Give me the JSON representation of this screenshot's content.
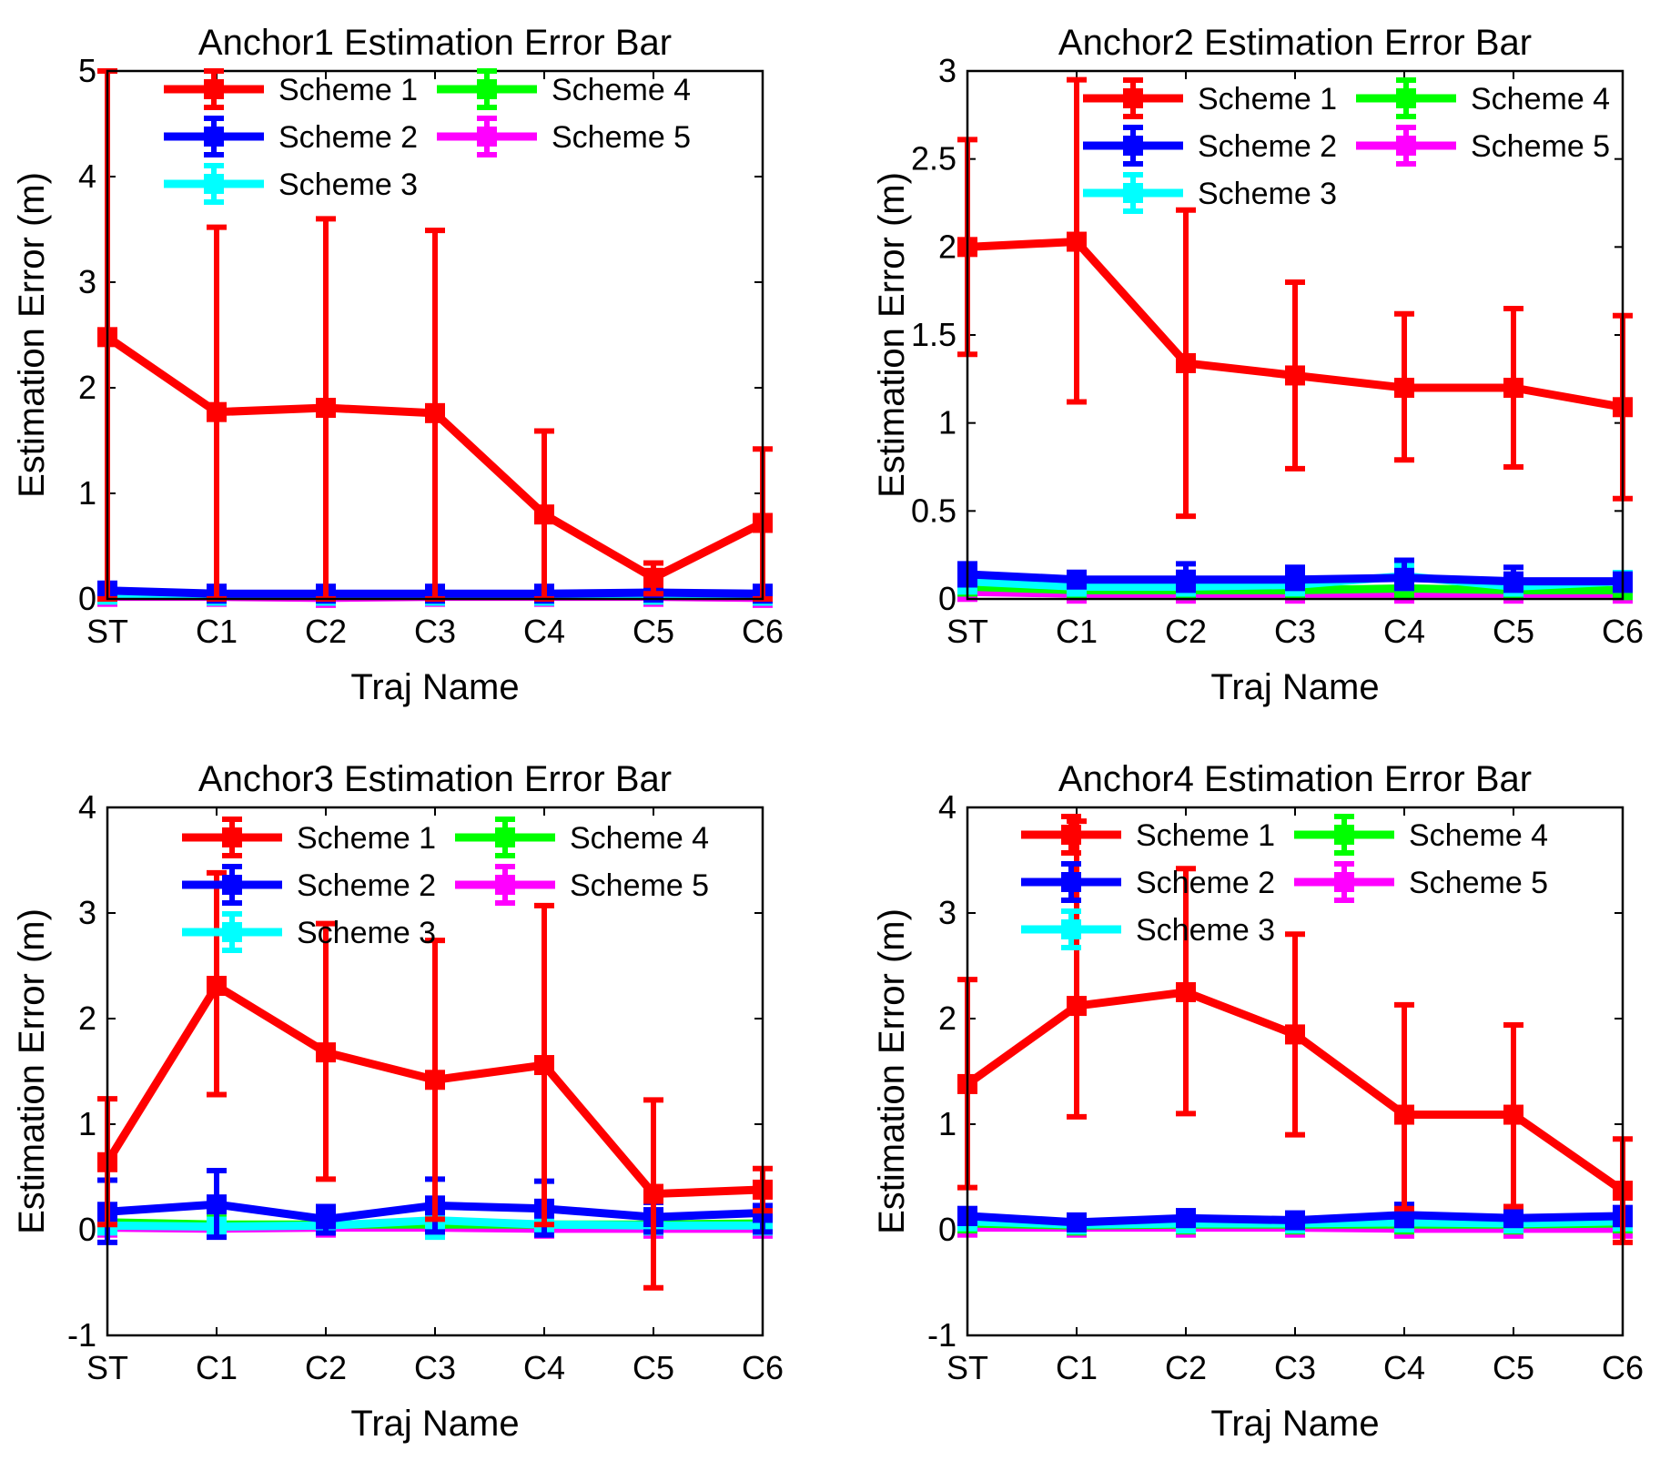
{
  "figure": {
    "background": "#ffffff"
  },
  "colors": {
    "s1": "#ff0000",
    "s2": "#0000ff",
    "s3": "#00ffff",
    "s4": "#00ff00",
    "s5": "#ff00ff"
  },
  "chart_data": [
    {
      "type": "line",
      "title": "Anchor1 Estimation Error Bar",
      "xlabel": "Traj Name",
      "ylabel": "Estimation Error (m)",
      "categories": [
        "ST",
        "C1",
        "C2",
        "C3",
        "C4",
        "C5",
        "C6"
      ],
      "ylim": [
        0,
        5
      ],
      "yticks": [
        0,
        1,
        2,
        3,
        4,
        5
      ],
      "ytick_labels": [
        "0",
        "1",
        "2",
        "3",
        "4",
        "5"
      ],
      "legend": {
        "layout": "two-column-top-left"
      },
      "series": [
        {
          "name": "Scheme 1",
          "color": "#ff0000",
          "values": [
            2.48,
            1.77,
            1.81,
            1.76,
            0.8,
            0.2,
            0.72
          ],
          "err_low": [
            0.0,
            0.0,
            0.0,
            0.0,
            0.0,
            0.05,
            0.0
          ],
          "err_high": [
            5.0,
            3.52,
            3.6,
            3.49,
            1.59,
            0.34,
            1.42
          ]
        },
        {
          "name": "Scheme 2",
          "color": "#0000ff",
          "values": [
            0.08,
            0.05,
            0.05,
            0.05,
            0.05,
            0.06,
            0.05
          ],
          "err_low": [
            0.05,
            0.02,
            0.02,
            0.02,
            0.02,
            0.03,
            0.02
          ],
          "err_high": [
            0.11,
            0.08,
            0.08,
            0.08,
            0.08,
            0.09,
            0.08
          ]
        },
        {
          "name": "Scheme 3",
          "color": "#00ffff",
          "values": [
            0.04,
            0.03,
            0.03,
            0.03,
            0.03,
            0.04,
            0.03
          ],
          "err_low": [
            0.0,
            0.0,
            0.0,
            0.0,
            0.0,
            0.0,
            0.0
          ],
          "err_high": [
            0.08,
            0.06,
            0.06,
            0.06,
            0.06,
            0.07,
            0.06
          ]
        },
        {
          "name": "Scheme 4",
          "color": "#00ff00",
          "values": [
            0.06,
            0.04,
            0.04,
            0.04,
            0.04,
            0.04,
            0.04
          ],
          "err_low": [
            0.02,
            0.01,
            0.01,
            0.01,
            0.01,
            0.01,
            0.01
          ],
          "err_high": [
            0.1,
            0.07,
            0.07,
            0.07,
            0.07,
            0.07,
            0.07
          ]
        },
        {
          "name": "Scheme 5",
          "color": "#ff00ff",
          "values": [
            0.02,
            0.02,
            0.01,
            0.02,
            0.02,
            0.02,
            0.01
          ],
          "err_low": [
            0.0,
            0.0,
            0.0,
            0.0,
            0.0,
            0.0,
            0.0
          ],
          "err_high": [
            0.04,
            0.04,
            0.03,
            0.04,
            0.04,
            0.04,
            0.03
          ]
        }
      ]
    },
    {
      "type": "line",
      "title": "Anchor2 Estimation Error Bar",
      "xlabel": "Traj Name",
      "ylabel": "Estimation Error (m)",
      "categories": [
        "ST",
        "C1",
        "C2",
        "C3",
        "C4",
        "C5",
        "C6"
      ],
      "ylim": [
        0,
        3
      ],
      "yticks": [
        0,
        0.5,
        1,
        1.5,
        2,
        2.5,
        3
      ],
      "ytick_labels": [
        "0",
        "0.5",
        "1",
        "1.5",
        "2",
        "2.5",
        "3"
      ],
      "legend": {
        "layout": "two-column-top-right"
      },
      "series": [
        {
          "name": "Scheme 1",
          "color": "#ff0000",
          "values": [
            2.0,
            2.03,
            1.34,
            1.27,
            1.2,
            1.2,
            1.09
          ],
          "err_low": [
            1.39,
            1.12,
            0.47,
            0.74,
            0.79,
            0.75,
            0.57
          ],
          "err_high": [
            2.61,
            2.95,
            2.21,
            1.8,
            1.62,
            1.65,
            1.61
          ]
        },
        {
          "name": "Scheme 2",
          "color": "#0000ff",
          "values": [
            0.14,
            0.11,
            0.11,
            0.11,
            0.12,
            0.1,
            0.1
          ],
          "err_low": [
            0.08,
            0.07,
            0.05,
            0.06,
            0.06,
            0.05,
            0.05
          ],
          "err_high": [
            0.2,
            0.14,
            0.2,
            0.18,
            0.22,
            0.18,
            0.14
          ]
        },
        {
          "name": "Scheme 3",
          "color": "#00ffff",
          "values": [
            0.1,
            0.07,
            0.07,
            0.08,
            0.13,
            0.07,
            0.1
          ],
          "err_low": [
            0.04,
            0.03,
            0.03,
            0.03,
            0.06,
            0.03,
            0.05
          ],
          "err_high": [
            0.16,
            0.12,
            0.12,
            0.13,
            0.2,
            0.12,
            0.15
          ]
        },
        {
          "name": "Scheme 4",
          "color": "#00ff00",
          "values": [
            0.07,
            0.05,
            0.05,
            0.05,
            0.06,
            0.05,
            0.05
          ],
          "err_low": [
            0.03,
            0.02,
            0.02,
            0.02,
            0.02,
            0.02,
            0.02
          ],
          "err_high": [
            0.11,
            0.08,
            0.08,
            0.08,
            0.1,
            0.08,
            0.08
          ]
        },
        {
          "name": "Scheme 5",
          "color": "#ff00ff",
          "values": [
            0.04,
            0.03,
            0.03,
            0.03,
            0.03,
            0.03,
            0.03
          ],
          "err_low": [
            0.0,
            0.0,
            0.0,
            0.0,
            0.0,
            0.0,
            0.0
          ],
          "err_high": [
            0.07,
            0.05,
            0.05,
            0.05,
            0.05,
            0.05,
            0.05
          ]
        }
      ]
    },
    {
      "type": "line",
      "title": "Anchor3 Estimation Error Bar",
      "xlabel": "Traj Name",
      "ylabel": "Estimation Error (m)",
      "categories": [
        "ST",
        "C1",
        "C2",
        "C3",
        "C4",
        "C5",
        "C6"
      ],
      "ylim": [
        -1,
        4
      ],
      "yticks": [
        -1,
        0,
        1,
        2,
        3,
        4
      ],
      "ytick_labels": [
        "-1",
        "0",
        "1",
        "2",
        "3",
        "4"
      ],
      "legend": {
        "layout": "two-column-top-left"
      },
      "series": [
        {
          "name": "Scheme 1",
          "color": "#ff0000",
          "values": [
            0.64,
            2.31,
            1.68,
            1.42,
            1.56,
            0.34,
            0.38
          ],
          "err_low": [
            0.05,
            1.28,
            0.48,
            0.1,
            0.05,
            -0.55,
            0.18
          ],
          "err_high": [
            1.24,
            3.38,
            2.9,
            2.74,
            3.07,
            1.23,
            0.58
          ]
        },
        {
          "name": "Scheme 2",
          "color": "#0000ff",
          "values": [
            0.17,
            0.24,
            0.1,
            0.23,
            0.2,
            0.12,
            0.16
          ],
          "err_low": [
            -0.12,
            -0.07,
            -0.03,
            -0.02,
            -0.05,
            -0.02,
            -0.02
          ],
          "err_high": [
            0.47,
            0.56,
            0.22,
            0.48,
            0.46,
            0.26,
            0.35
          ]
        },
        {
          "name": "Scheme 3",
          "color": "#00ffff",
          "values": [
            0.04,
            0.03,
            0.04,
            0.09,
            0.05,
            0.04,
            0.04
          ],
          "err_low": [
            -0.02,
            -0.02,
            0.0,
            -0.07,
            0.0,
            0.0,
            0.0
          ],
          "err_high": [
            0.1,
            0.09,
            0.1,
            0.26,
            0.1,
            0.08,
            0.08
          ]
        },
        {
          "name": "Scheme 4",
          "color": "#00ff00",
          "values": [
            0.07,
            0.05,
            0.05,
            0.05,
            0.05,
            0.05,
            0.06
          ],
          "err_low": [
            0.02,
            0.01,
            0.01,
            0.01,
            0.01,
            0.01,
            0.02
          ],
          "err_high": [
            0.12,
            0.09,
            0.09,
            0.09,
            0.09,
            0.09,
            0.1
          ]
        },
        {
          "name": "Scheme 5",
          "color": "#ff00ff",
          "values": [
            0.02,
            0.01,
            0.02,
            0.02,
            0.01,
            0.01,
            0.01
          ],
          "err_low": [
            -0.02,
            -0.02,
            -0.02,
            -0.02,
            -0.02,
            -0.02,
            -0.02
          ],
          "err_high": [
            0.06,
            0.04,
            0.05,
            0.05,
            0.04,
            0.04,
            0.04
          ]
        }
      ]
    },
    {
      "type": "line",
      "title": "Anchor4 Estimation Error Bar",
      "xlabel": "Traj Name",
      "ylabel": "Estimation Error (m)",
      "categories": [
        "ST",
        "C1",
        "C2",
        "C3",
        "C4",
        "C5",
        "C6"
      ],
      "ylim": [
        -1,
        4
      ],
      "yticks": [
        -1,
        0,
        1,
        2,
        3,
        4
      ],
      "ytick_labels": [
        "-1",
        "0",
        "1",
        "2",
        "3",
        "4"
      ],
      "legend": {
        "layout": "two-column-top-left"
      },
      "series": [
        {
          "name": "Scheme 1",
          "color": "#ff0000",
          "values": [
            1.38,
            2.12,
            2.25,
            1.85,
            1.09,
            1.09,
            0.37
          ],
          "err_low": [
            0.4,
            1.07,
            1.1,
            0.9,
            0.2,
            0.22,
            -0.12
          ],
          "err_high": [
            2.37,
            3.87,
            3.42,
            2.8,
            2.13,
            1.94,
            0.86
          ]
        },
        {
          "name": "Scheme 2",
          "color": "#0000ff",
          "values": [
            0.13,
            0.07,
            0.11,
            0.09,
            0.14,
            0.11,
            0.13
          ],
          "err_low": [
            0.06,
            0.02,
            0.05,
            0.04,
            0.04,
            0.05,
            0.05
          ],
          "err_high": [
            0.2,
            0.12,
            0.18,
            0.14,
            0.24,
            0.17,
            0.21
          ]
        },
        {
          "name": "Scheme 3",
          "color": "#00ffff",
          "values": [
            0.08,
            0.05,
            0.06,
            0.06,
            0.07,
            0.06,
            0.08
          ],
          "err_low": [
            0.02,
            0.01,
            0.02,
            0.02,
            0.02,
            0.02,
            0.02
          ],
          "err_high": [
            0.14,
            0.09,
            0.1,
            0.1,
            0.12,
            0.1,
            0.14
          ]
        },
        {
          "name": "Scheme 4",
          "color": "#00ff00",
          "values": [
            0.06,
            0.04,
            0.05,
            0.05,
            0.05,
            0.05,
            0.06
          ],
          "err_low": [
            0.02,
            0.01,
            0.01,
            0.01,
            0.01,
            0.01,
            0.02
          ],
          "err_high": [
            0.1,
            0.07,
            0.09,
            0.09,
            0.09,
            0.09,
            0.1
          ]
        },
        {
          "name": "Scheme 5",
          "color": "#ff00ff",
          "values": [
            0.02,
            0.02,
            0.02,
            0.02,
            0.01,
            0.01,
            0.01
          ],
          "err_low": [
            -0.02,
            -0.02,
            -0.02,
            -0.02,
            -0.02,
            -0.02,
            -0.02
          ],
          "err_high": [
            0.06,
            0.05,
            0.05,
            0.05,
            0.04,
            0.04,
            0.04
          ]
        }
      ]
    }
  ]
}
